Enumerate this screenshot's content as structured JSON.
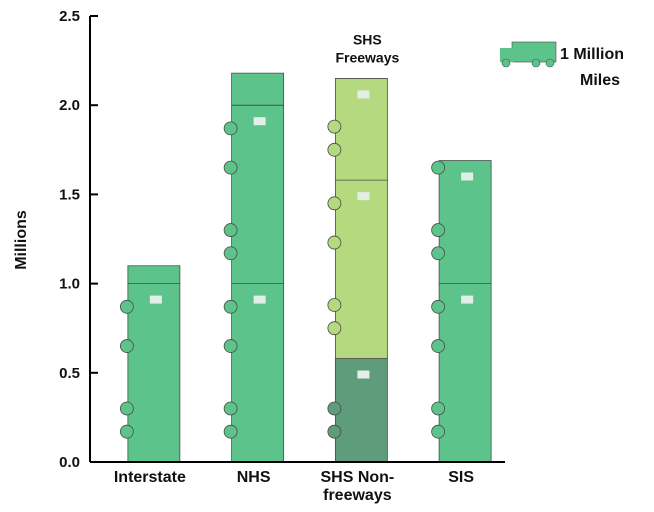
{
  "chart_data": {
    "type": "bar",
    "ylabel": "Millions",
    "ylim": [
      0,
      2.5
    ],
    "yticks": [
      "0.0",
      "0.5",
      "1.0",
      "1.5",
      "2.0",
      "2.5"
    ],
    "ytick_values": [
      0,
      0.5,
      1.0,
      1.5,
      2.0,
      2.5
    ],
    "categories": [
      {
        "lines": [
          "Interstate"
        ]
      },
      {
        "lines": [
          "NHS"
        ]
      },
      {
        "lines": [
          "SHS Non-",
          "freeways"
        ]
      },
      {
        "lines": [
          "SIS"
        ]
      }
    ],
    "series": [
      {
        "values": [
          1.1,
          2.18,
          0.58,
          1.69
        ],
        "color": "#5cc48b"
      },
      {
        "values": [
          0,
          0,
          1.57,
          0
        ],
        "color": "#b5d97e"
      }
    ],
    "annotations": [
      {
        "lines": [
          "SHS",
          "Freeways"
        ],
        "category_index": 2
      }
    ],
    "legend": {
      "lines": [
        "1 Million",
        "Miles"
      ],
      "placement": "top-right",
      "icon": "truck-icon"
    },
    "colors": {
      "primary": "#5cc48b",
      "light": "#b5d97e",
      "dark": "#5f9c7c",
      "outline": "#4a4a4a"
    }
  }
}
